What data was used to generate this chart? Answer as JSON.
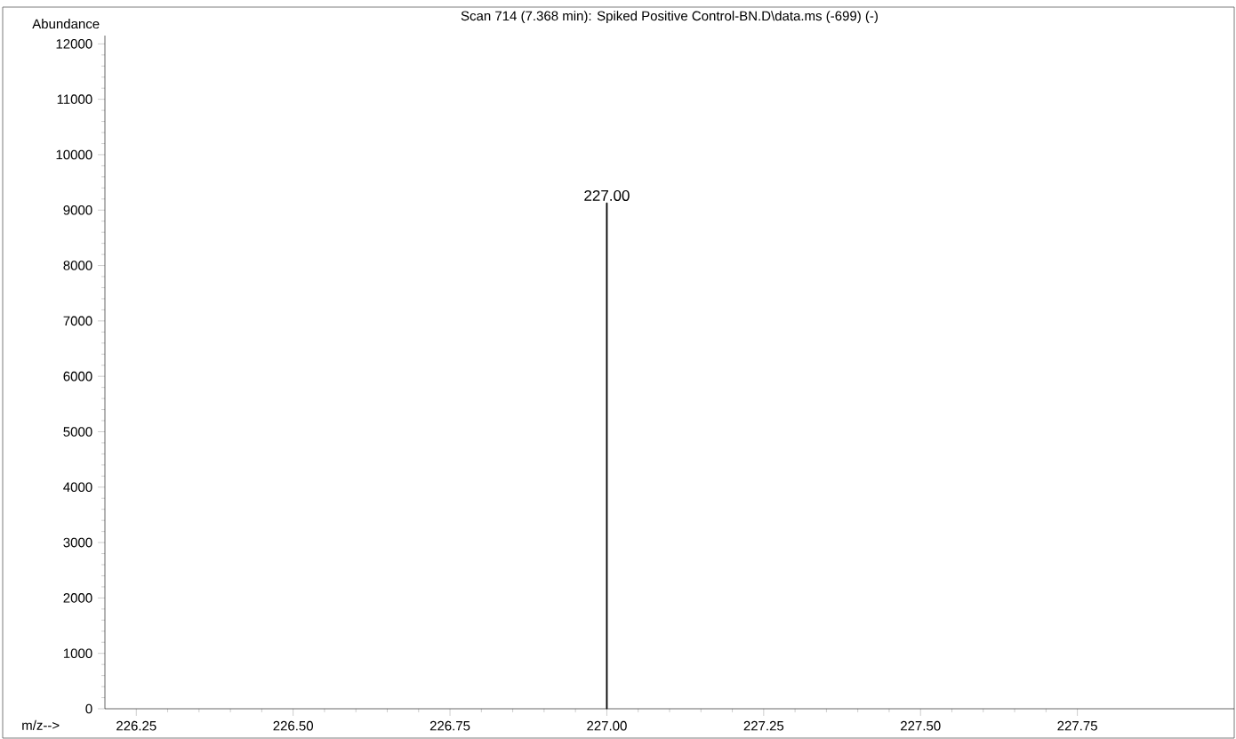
{
  "chart_data": {
    "type": "bar",
    "title": "Scan 714 (7.368 min): Spiked Positive Control-BN.D\\data.ms (-699) (-)",
    "xlabel": "m/z-->",
    "ylabel": "Abundance",
    "x": [
      227.0
    ],
    "values": [
      9130
    ],
    "color": "#000000",
    "xlim": [
      226.2,
      228.0
    ],
    "ylim": [
      0,
      12150
    ],
    "xticks": [
      {
        "value": 226.25,
        "label": "226.25"
      },
      {
        "value": 226.5,
        "label": "226.50"
      },
      {
        "value": 226.75,
        "label": "226.75"
      },
      {
        "value": 227.0,
        "label": "227.00"
      },
      {
        "value": 227.25,
        "label": "227.25"
      },
      {
        "value": 227.5,
        "label": "227.50"
      },
      {
        "value": 227.75,
        "label": "227.75"
      }
    ],
    "yticks": [
      0,
      1000,
      2000,
      3000,
      4000,
      5000,
      6000,
      7000,
      8000,
      9000,
      10000,
      11000,
      12000
    ],
    "annotations": [
      "227.00"
    ]
  }
}
